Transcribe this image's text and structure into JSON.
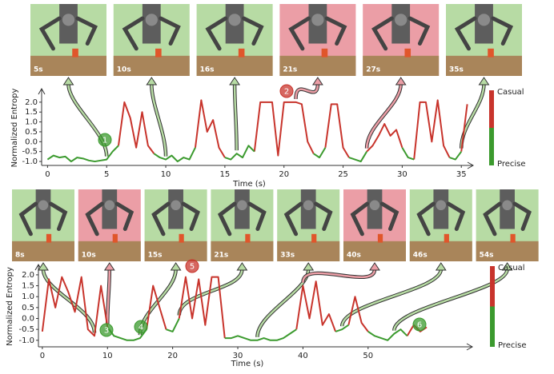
{
  "chart_data": [
    {
      "type": "line",
      "xlabel": "Time (s)",
      "ylabel": "Normalized Entropy",
      "x": [
        0,
        0.5,
        1,
        1.5,
        2,
        2.5,
        3,
        3.5,
        4,
        4.5,
        5,
        5.5,
        6,
        6.5,
        7,
        7.5,
        8,
        8.5,
        9,
        9.5,
        10,
        10.5,
        11,
        11.5,
        12,
        12.5,
        13,
        13.5,
        14,
        14.5,
        15,
        15.5,
        16,
        16.5,
        17,
        17.5,
        18,
        18.5,
        19,
        19.5,
        20,
        20.5,
        21,
        21.5,
        22,
        22.5,
        23,
        23.5,
        24,
        24.5,
        25,
        25.5,
        26,
        26.5,
        27,
        27.5,
        28,
        28.5,
        29,
        29.5,
        30,
        30.5,
        31,
        31.5,
        32,
        32.5,
        33,
        33.5,
        34,
        34.5,
        35,
        35.5
      ],
      "series": [
        {
          "name": "Casual",
          "color": "#c8342c",
          "values": [
            null,
            null,
            null,
            null,
            null,
            null,
            null,
            null,
            null,
            null,
            null,
            null,
            -0.2,
            2.0,
            1.2,
            -0.3,
            1.5,
            -0.2,
            -0.6,
            null,
            null,
            null,
            null,
            null,
            null,
            -0.3,
            2.1,
            0.5,
            1.1,
            -0.3,
            -0.8,
            null,
            null,
            null,
            null,
            -0.5,
            2.0,
            2.0,
            2.0,
            -0.7,
            2.0,
            2.0,
            2.0,
            1.9,
            0.0,
            -0.6,
            null,
            -0.3,
            1.9,
            1.9,
            -0.3,
            -0.8,
            null,
            null,
            -0.5,
            -0.2,
            0.3,
            0.9,
            0.3,
            0.6,
            -0.3,
            null,
            -0.9,
            2.0,
            2.0,
            0.0,
            2.1,
            -0.2,
            -0.8,
            null,
            -0.5,
            1.9
          ]
        },
        {
          "name": "Precise",
          "color": "#3b9a2e",
          "values": [
            -0.9,
            -0.7,
            -0.8,
            -0.75,
            -1.0,
            -0.8,
            -0.85,
            -0.95,
            -1.0,
            -0.95,
            -0.9,
            -0.5,
            -0.2,
            null,
            null,
            null,
            null,
            null,
            -0.6,
            -0.8,
            -0.9,
            -0.7,
            -1.0,
            -0.8,
            -0.9,
            -0.3,
            null,
            null,
            null,
            null,
            -0.8,
            -0.9,
            -0.6,
            -0.8,
            -0.2,
            -0.5,
            null,
            null,
            null,
            null,
            null,
            null,
            null,
            null,
            null,
            -0.6,
            -0.8,
            -0.3,
            null,
            null,
            null,
            -0.8,
            -0.9,
            -1.0,
            -0.5,
            null,
            null,
            null,
            null,
            null,
            -0.3,
            -0.8,
            -0.9,
            null,
            null,
            null,
            null,
            null,
            -0.8,
            -0.9,
            -0.5,
            null
          ]
        }
      ],
      "xlim": [
        -0.5,
        36
      ],
      "ylim": [
        -1.2,
        2.6
      ],
      "xticks": [
        0,
        5,
        10,
        15,
        20,
        25,
        30,
        35
      ],
      "yticks": [
        {
          "value": -1,
          "label": "-1.0"
        },
        -0.5,
        {
          "value": 0,
          "label": "0.0"
        },
        0.5,
        {
          "value": 1,
          "label": "1.0"
        },
        1.5,
        {
          "value": 2,
          "label": "2.0"
        }
      ],
      "annotations": [
        {
          "text": "1",
          "color": "#3b9a2e"
        },
        {
          "text": "2",
          "color": "#c8342c"
        }
      ],
      "snapshots": [
        {
          "label": "5s",
          "time": 5,
          "color": "#b7dba4"
        },
        {
          "label": "10s",
          "time": 10,
          "color": "#b7dba4"
        },
        {
          "label": "16s",
          "time": 16,
          "color": "#b7dba4"
        },
        {
          "label": "21s",
          "time": 21,
          "color": "#eb9ea6"
        },
        {
          "label": "27s",
          "time": 27,
          "color": "#eb9ea6"
        },
        {
          "label": "35s",
          "time": 35,
          "color": "#b7dba4"
        }
      ]
    },
    {
      "type": "line",
      "xlabel": "Time (s)",
      "ylabel": "Normalized Entropy",
      "x": [
        0,
        1,
        2,
        3,
        4,
        5,
        6,
        7,
        8,
        9,
        10,
        11,
        12,
        13,
        14,
        15,
        16,
        17,
        18,
        19,
        20,
        21,
        22,
        23,
        24,
        25,
        26,
        27,
        28,
        29,
        30,
        31,
        32,
        33,
        34,
        35,
        36,
        37,
        38,
        39,
        40,
        41,
        42,
        43,
        44,
        45,
        46,
        47,
        48,
        49,
        50,
        51,
        52,
        53,
        54,
        55,
        56,
        57,
        58,
        59
      ],
      "series": [
        {
          "name": "Casual",
          "color": "#c8342c",
          "values": [
            -0.6,
            1.8,
            0.5,
            1.9,
            1.2,
            0.3,
            1.9,
            -0.5,
            -0.8,
            1.5,
            -0.4,
            null,
            null,
            null,
            null,
            null,
            -0.5,
            1.5,
            0.5,
            -0.5,
            null,
            0.0,
            1.9,
            0.0,
            1.8,
            -0.3,
            1.9,
            1.9,
            -0.9,
            null,
            null,
            null,
            null,
            null,
            null,
            null,
            null,
            null,
            null,
            -0.5,
            1.5,
            0.0,
            1.7,
            -0.3,
            0.2,
            -0.6,
            null,
            -0.3,
            1.0,
            -0.2,
            -0.6,
            null,
            null,
            null,
            null,
            null,
            -0.8,
            -0.3,
            -0.6,
            -0.4
          ]
        },
        {
          "name": "Precise",
          "color": "#3b9a2e",
          "values": [
            null,
            null,
            null,
            null,
            null,
            null,
            null,
            null,
            null,
            null,
            -0.4,
            -0.8,
            -0.9,
            -1.0,
            -1.0,
            -0.9,
            -0.5,
            null,
            null,
            -0.5,
            -0.6,
            0.0,
            null,
            null,
            null,
            null,
            null,
            null,
            -0.9,
            -0.9,
            -0.8,
            -0.9,
            -1.0,
            -1.0,
            -0.9,
            -1.0,
            -1.0,
            -0.9,
            -0.7,
            -0.5,
            null,
            null,
            null,
            null,
            null,
            -0.6,
            -0.5,
            -0.3,
            null,
            null,
            -0.6,
            -0.8,
            -0.9,
            -1.0,
            -0.7,
            -0.5,
            -0.8,
            null,
            null,
            null
          ]
        }
      ],
      "xlim": [
        -0.6,
        66
      ],
      "ylim": [
        -1.3,
        2.4
      ],
      "xticks": [
        0,
        10,
        20,
        30,
        40,
        50
      ],
      "yticks": [
        {
          "value": -1,
          "label": "-1.0"
        },
        -0.5,
        {
          "value": 0,
          "label": "0.0"
        },
        0.5,
        {
          "value": 1,
          "label": "1.0"
        },
        1.5,
        {
          "value": 2,
          "label": "2.0"
        }
      ],
      "annotations": [
        {
          "text": "3",
          "color": "#3b9a2e"
        },
        {
          "text": "4",
          "color": "#3b9a2e"
        },
        {
          "text": "5",
          "color": "#c8342c"
        },
        {
          "text": "6",
          "color": "#3b9a2e"
        }
      ],
      "snapshots": [
        {
          "label": "8s",
          "time": 8,
          "color": "#b7dba4"
        },
        {
          "label": "10s",
          "time": 10,
          "color": "#eb9ea6"
        },
        {
          "label": "15s",
          "time": 15,
          "color": "#b7dba4"
        },
        {
          "label": "21s",
          "time": 21,
          "color": "#b7dba4"
        },
        {
          "label": "33s",
          "time": 33,
          "color": "#b7dba4"
        },
        {
          "label": "40s",
          "time": 40,
          "color": "#eb9ea6"
        },
        {
          "label": "46s",
          "time": 46,
          "color": "#b7dba4"
        },
        {
          "label": "54s",
          "time": 54,
          "color": "#b7dba4"
        }
      ]
    }
  ]
}
